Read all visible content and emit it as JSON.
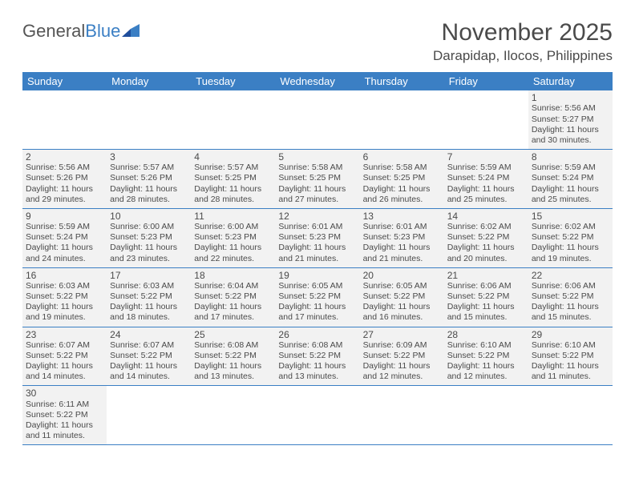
{
  "logo": {
    "part1": "General",
    "part2": "Blue"
  },
  "title": "November 2025",
  "location": "Darapidap, Ilocos, Philippines",
  "colors": {
    "header_bg": "#3b7fc4",
    "header_text": "#ffffff",
    "cell_bg": "#f2f2f2",
    "page_bg": "#ffffff",
    "text": "#4a4a4a",
    "divider": "#3b7fc4"
  },
  "typography": {
    "title_fontsize": 30,
    "location_fontsize": 17,
    "dayheader_fontsize": 13,
    "daynum_fontsize": 12,
    "info_fontsize": 10.5
  },
  "dayNames": [
    "Sunday",
    "Monday",
    "Tuesday",
    "Wednesday",
    "Thursday",
    "Friday",
    "Saturday"
  ],
  "weeks": [
    [
      null,
      null,
      null,
      null,
      null,
      null,
      {
        "n": "1",
        "sr": "Sunrise: 5:56 AM",
        "ss": "Sunset: 5:27 PM",
        "dl1": "Daylight: 11 hours",
        "dl2": "and 30 minutes."
      }
    ],
    [
      {
        "n": "2",
        "sr": "Sunrise: 5:56 AM",
        "ss": "Sunset: 5:26 PM",
        "dl1": "Daylight: 11 hours",
        "dl2": "and 29 minutes."
      },
      {
        "n": "3",
        "sr": "Sunrise: 5:57 AM",
        "ss": "Sunset: 5:26 PM",
        "dl1": "Daylight: 11 hours",
        "dl2": "and 28 minutes."
      },
      {
        "n": "4",
        "sr": "Sunrise: 5:57 AM",
        "ss": "Sunset: 5:25 PM",
        "dl1": "Daylight: 11 hours",
        "dl2": "and 28 minutes."
      },
      {
        "n": "5",
        "sr": "Sunrise: 5:58 AM",
        "ss": "Sunset: 5:25 PM",
        "dl1": "Daylight: 11 hours",
        "dl2": "and 27 minutes."
      },
      {
        "n": "6",
        "sr": "Sunrise: 5:58 AM",
        "ss": "Sunset: 5:25 PM",
        "dl1": "Daylight: 11 hours",
        "dl2": "and 26 minutes."
      },
      {
        "n": "7",
        "sr": "Sunrise: 5:59 AM",
        "ss": "Sunset: 5:24 PM",
        "dl1": "Daylight: 11 hours",
        "dl2": "and 25 minutes."
      },
      {
        "n": "8",
        "sr": "Sunrise: 5:59 AM",
        "ss": "Sunset: 5:24 PM",
        "dl1": "Daylight: 11 hours",
        "dl2": "and 25 minutes."
      }
    ],
    [
      {
        "n": "9",
        "sr": "Sunrise: 5:59 AM",
        "ss": "Sunset: 5:24 PM",
        "dl1": "Daylight: 11 hours",
        "dl2": "and 24 minutes."
      },
      {
        "n": "10",
        "sr": "Sunrise: 6:00 AM",
        "ss": "Sunset: 5:23 PM",
        "dl1": "Daylight: 11 hours",
        "dl2": "and 23 minutes."
      },
      {
        "n": "11",
        "sr": "Sunrise: 6:00 AM",
        "ss": "Sunset: 5:23 PM",
        "dl1": "Daylight: 11 hours",
        "dl2": "and 22 minutes."
      },
      {
        "n": "12",
        "sr": "Sunrise: 6:01 AM",
        "ss": "Sunset: 5:23 PM",
        "dl1": "Daylight: 11 hours",
        "dl2": "and 21 minutes."
      },
      {
        "n": "13",
        "sr": "Sunrise: 6:01 AM",
        "ss": "Sunset: 5:23 PM",
        "dl1": "Daylight: 11 hours",
        "dl2": "and 21 minutes."
      },
      {
        "n": "14",
        "sr": "Sunrise: 6:02 AM",
        "ss": "Sunset: 5:22 PM",
        "dl1": "Daylight: 11 hours",
        "dl2": "and 20 minutes."
      },
      {
        "n": "15",
        "sr": "Sunrise: 6:02 AM",
        "ss": "Sunset: 5:22 PM",
        "dl1": "Daylight: 11 hours",
        "dl2": "and 19 minutes."
      }
    ],
    [
      {
        "n": "16",
        "sr": "Sunrise: 6:03 AM",
        "ss": "Sunset: 5:22 PM",
        "dl1": "Daylight: 11 hours",
        "dl2": "and 19 minutes."
      },
      {
        "n": "17",
        "sr": "Sunrise: 6:03 AM",
        "ss": "Sunset: 5:22 PM",
        "dl1": "Daylight: 11 hours",
        "dl2": "and 18 minutes."
      },
      {
        "n": "18",
        "sr": "Sunrise: 6:04 AM",
        "ss": "Sunset: 5:22 PM",
        "dl1": "Daylight: 11 hours",
        "dl2": "and 17 minutes."
      },
      {
        "n": "19",
        "sr": "Sunrise: 6:05 AM",
        "ss": "Sunset: 5:22 PM",
        "dl1": "Daylight: 11 hours",
        "dl2": "and 17 minutes."
      },
      {
        "n": "20",
        "sr": "Sunrise: 6:05 AM",
        "ss": "Sunset: 5:22 PM",
        "dl1": "Daylight: 11 hours",
        "dl2": "and 16 minutes."
      },
      {
        "n": "21",
        "sr": "Sunrise: 6:06 AM",
        "ss": "Sunset: 5:22 PM",
        "dl1": "Daylight: 11 hours",
        "dl2": "and 15 minutes."
      },
      {
        "n": "22",
        "sr": "Sunrise: 6:06 AM",
        "ss": "Sunset: 5:22 PM",
        "dl1": "Daylight: 11 hours",
        "dl2": "and 15 minutes."
      }
    ],
    [
      {
        "n": "23",
        "sr": "Sunrise: 6:07 AM",
        "ss": "Sunset: 5:22 PM",
        "dl1": "Daylight: 11 hours",
        "dl2": "and 14 minutes."
      },
      {
        "n": "24",
        "sr": "Sunrise: 6:07 AM",
        "ss": "Sunset: 5:22 PM",
        "dl1": "Daylight: 11 hours",
        "dl2": "and 14 minutes."
      },
      {
        "n": "25",
        "sr": "Sunrise: 6:08 AM",
        "ss": "Sunset: 5:22 PM",
        "dl1": "Daylight: 11 hours",
        "dl2": "and 13 minutes."
      },
      {
        "n": "26",
        "sr": "Sunrise: 6:08 AM",
        "ss": "Sunset: 5:22 PM",
        "dl1": "Daylight: 11 hours",
        "dl2": "and 13 minutes."
      },
      {
        "n": "27",
        "sr": "Sunrise: 6:09 AM",
        "ss": "Sunset: 5:22 PM",
        "dl1": "Daylight: 11 hours",
        "dl2": "and 12 minutes."
      },
      {
        "n": "28",
        "sr": "Sunrise: 6:10 AM",
        "ss": "Sunset: 5:22 PM",
        "dl1": "Daylight: 11 hours",
        "dl2": "and 12 minutes."
      },
      {
        "n": "29",
        "sr": "Sunrise: 6:10 AM",
        "ss": "Sunset: 5:22 PM",
        "dl1": "Daylight: 11 hours",
        "dl2": "and 11 minutes."
      }
    ],
    [
      {
        "n": "30",
        "sr": "Sunrise: 6:11 AM",
        "ss": "Sunset: 5:22 PM",
        "dl1": "Daylight: 11 hours",
        "dl2": "and 11 minutes."
      },
      null,
      null,
      null,
      null,
      null,
      null
    ]
  ]
}
